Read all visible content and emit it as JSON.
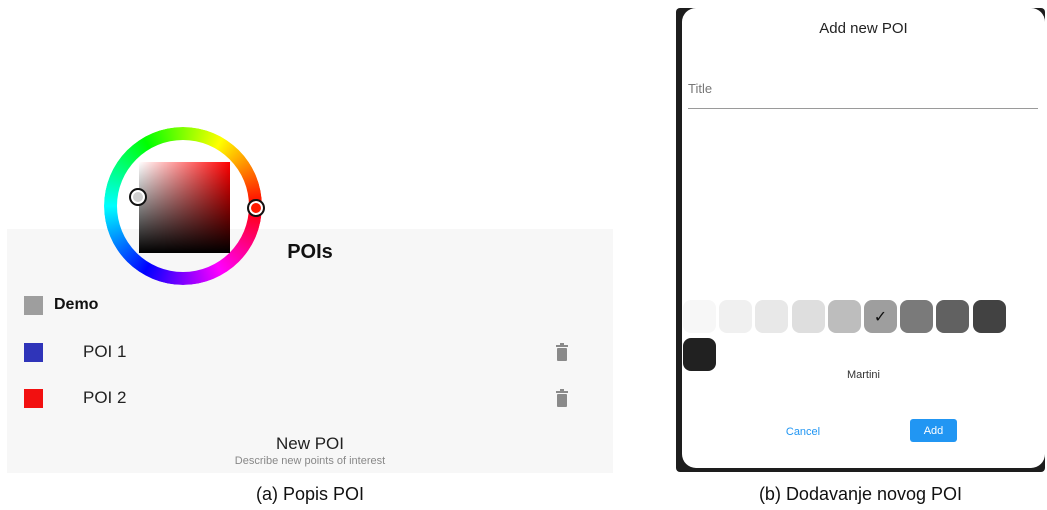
{
  "panel_a": {
    "title": "POIs",
    "group": {
      "label": "Demo",
      "color": "#9e9e9e"
    },
    "pois": [
      {
        "label": "POI 1",
        "color": "#2f34b9",
        "icon": "trash-icon"
      },
      {
        "label": "POI 2",
        "color": "#f21010",
        "icon": "trash-icon"
      }
    ],
    "new_poi": {
      "title": "New POI",
      "subtitle": "Describe new points of interest"
    },
    "caption": "(a) Popis POI"
  },
  "panel_b": {
    "dialog_title": "Add new POI",
    "title_field": {
      "placeholder": "Title",
      "value": ""
    },
    "picker": {
      "selected_hue": "#ff0000"
    },
    "swatches": [
      {
        "color": "#f7f7f7",
        "selected": false
      },
      {
        "color": "#f0f0f0",
        "selected": false
      },
      {
        "color": "#e8e8e8",
        "selected": false
      },
      {
        "color": "#dedede",
        "selected": false
      },
      {
        "color": "#bdbdbd",
        "selected": false
      },
      {
        "color": "#9e9e9e",
        "selected": true,
        "mark": "✓"
      },
      {
        "color": "#7a7a7a",
        "selected": false
      },
      {
        "color": "#616161",
        "selected": false
      },
      {
        "color": "#424242",
        "selected": false
      },
      {
        "color": "#212121",
        "selected": false
      }
    ],
    "color_name": "Martini",
    "cancel_label": "Cancel",
    "add_label": "Add",
    "caption": "(b) Dodavanje novog POI"
  }
}
